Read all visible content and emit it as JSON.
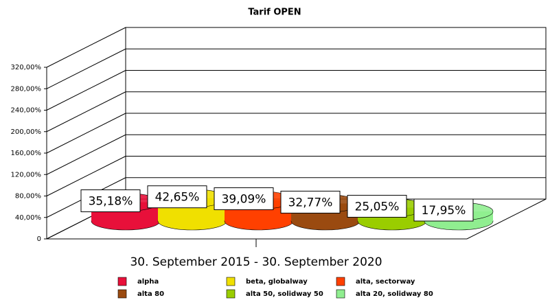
{
  "chart_data": {
    "type": "bar",
    "title": "Tarif OPEN",
    "categories": [
      "30. September 2015 - 30. September 2020"
    ],
    "series": [
      {
        "name": "alpha",
        "color": "#e8103a",
        "values": [
          35.18
        ],
        "value_labels": [
          "35,18%"
        ]
      },
      {
        "name": "beta, globalway",
        "color": "#f0e000",
        "values": [
          42.65
        ],
        "value_labels": [
          "42,65%"
        ]
      },
      {
        "name": "alta, sectorway",
        "color": "#ff4000",
        "values": [
          39.09
        ],
        "value_labels": [
          "39,09%"
        ]
      },
      {
        "name": "alta 80",
        "color": "#9a4a10",
        "values": [
          32.77
        ],
        "value_labels": [
          "32,77%"
        ]
      },
      {
        "name": "alta 50, solidway 50",
        "color": "#9acd00",
        "values": [
          25.05
        ],
        "value_labels": [
          "25,05%"
        ]
      },
      {
        "name": "alta 20, solidway 80",
        "color": "#90ee90",
        "values": [
          17.95
        ],
        "value_labels": [
          "17,95%"
        ]
      }
    ],
    "ylim": [
      0,
      320
    ],
    "yticks": [
      0,
      {
        "value": 40,
        "label": "40,00%"
      },
      {
        "value": 80,
        "label": "80,00%"
      },
      {
        "value": 120,
        "label": "120,00%"
      },
      {
        "value": 160,
        "label": "160,00%"
      },
      {
        "value": 200,
        "label": "200,00%"
      },
      {
        "value": 240,
        "label": "240,00%"
      },
      {
        "value": 280,
        "label": "280,00%"
      },
      {
        "value": 320,
        "label": "320,00%"
      }
    ],
    "grid": true
  }
}
